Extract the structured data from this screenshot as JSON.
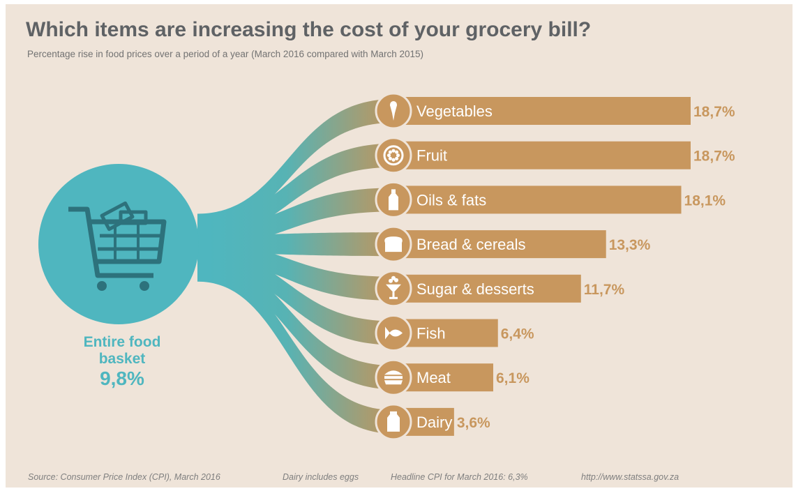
{
  "title": "Which items are increasing the cost of your grocery bill?",
  "subtitle": "Percentage rise in food prices over a period of a year (March 2016 compared with March 2015)",
  "basket": {
    "line1": "Entire food",
    "line2": "basket",
    "value_label": "9,8%",
    "icon": "shopping-cart-icon"
  },
  "colors": {
    "background": "#efe4d9",
    "bar": "#c8975e",
    "teal": "#4fb6bf",
    "cart": "#2d727c",
    "value_text": "#c8975e",
    "title": "#5f6265"
  },
  "chart_data": {
    "type": "bar",
    "orientation": "horizontal",
    "title": "Which items are increasing the cost of your grocery bill?",
    "subtitle": "Percentage rise in food prices over a period of a year (March 2016 compared with March 2015)",
    "categories": [
      "Vegetables",
      "Fruit",
      "Oils & fats",
      "Bread & cereals",
      "Sugar & desserts",
      "Fish",
      "Meat",
      "Dairy"
    ],
    "values": [
      18.7,
      18.7,
      18.1,
      13.3,
      11.7,
      6.4,
      6.1,
      3.6
    ],
    "value_labels": [
      "18,7%",
      "18,7%",
      "18,1%",
      "13,3%",
      "11,7%",
      "6,4%",
      "6,1%",
      "3,6%"
    ],
    "icons": [
      "vegetable-icon",
      "fruit-icon",
      "bottle-icon",
      "bread-icon",
      "dessert-icon",
      "fish-icon",
      "meat-icon",
      "milk-icon"
    ],
    "total": {
      "label": "Entire food basket",
      "value": 9.8,
      "value_label": "9,8%"
    },
    "grid": false,
    "legend": "none"
  },
  "footer": {
    "source": "Source: Consumer Price Index (CPI), March 2016",
    "note": "Dairy includes eggs",
    "headline": "Headline CPI for March 2016: 6,3%",
    "url": "http://www.statssa.gov.za"
  }
}
